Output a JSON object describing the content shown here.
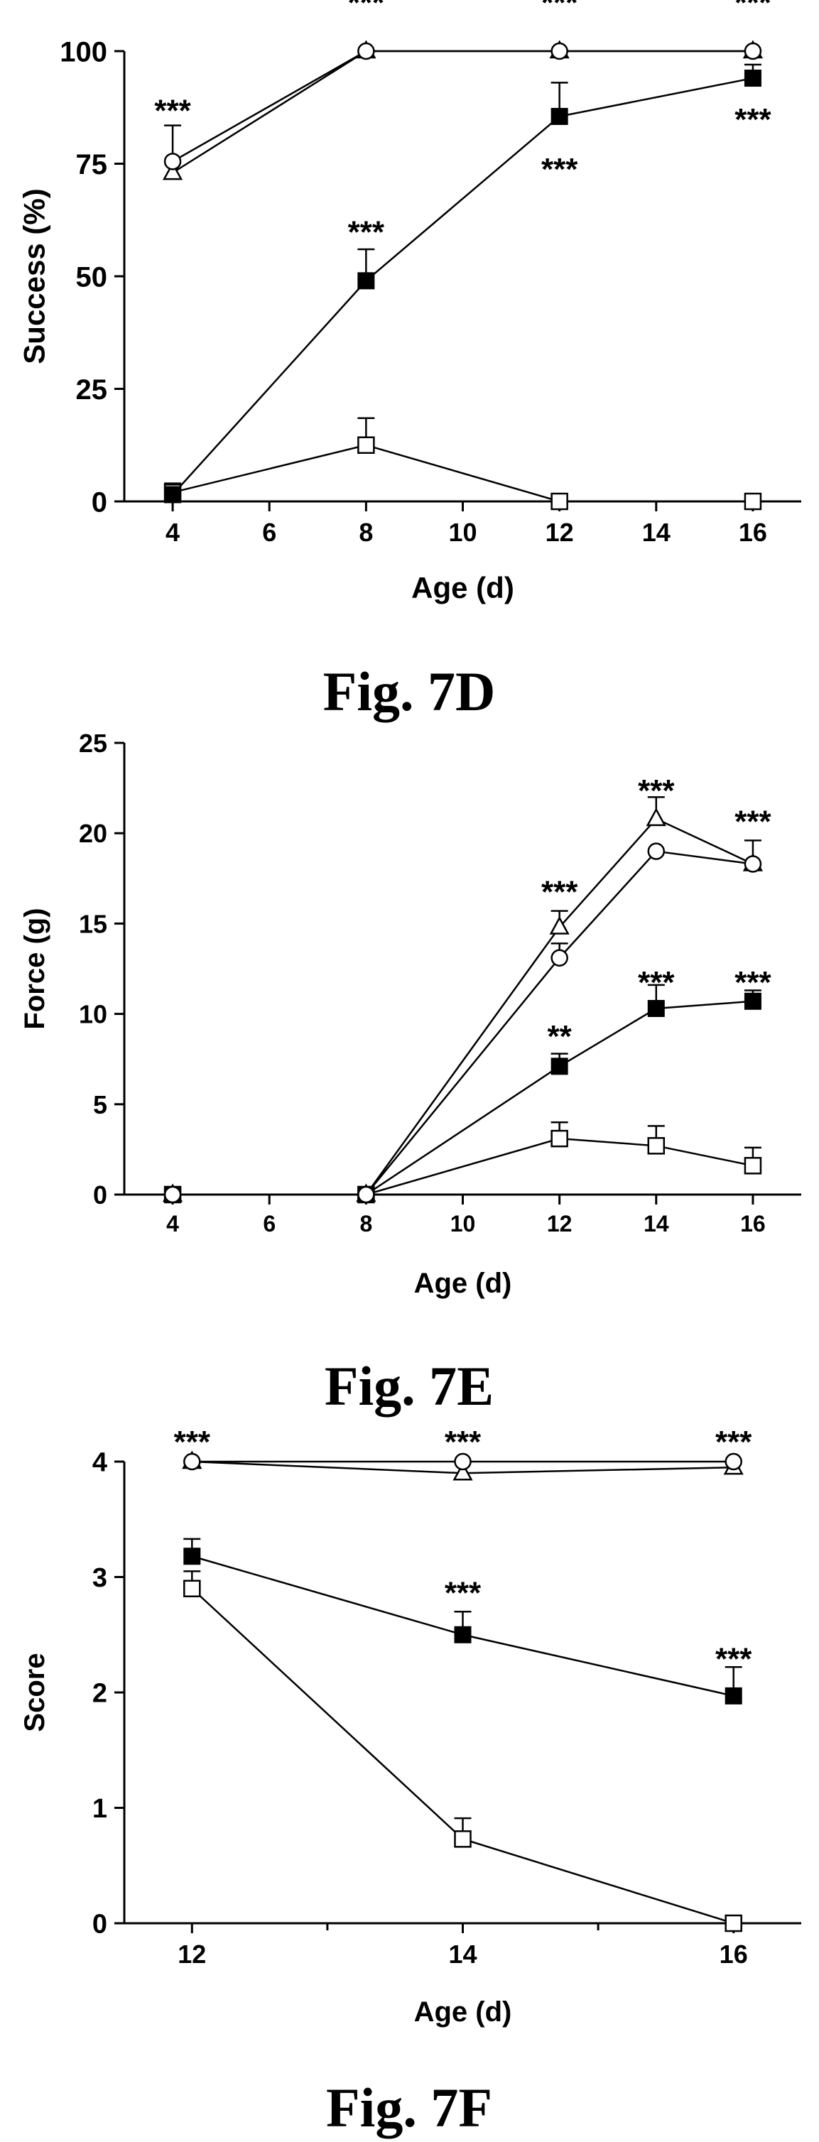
{
  "chart_data": [
    {
      "type": "line",
      "figure_label": "Fig. 7D",
      "xlabel": "Age (d)",
      "ylabel": "Success (%)",
      "xlim": [
        3,
        17
      ],
      "ylim": [
        0,
        100
      ],
      "xticks": [
        4,
        6,
        8,
        10,
        12,
        14,
        16
      ],
      "yticks": [
        0,
        25,
        50,
        75,
        100
      ],
      "x": [
        4,
        8,
        12,
        16
      ],
      "grid": false,
      "legend": "none",
      "series": [
        {
          "marker": "triangle-open",
          "values": [
            73,
            100,
            100,
            100
          ],
          "errors": [
            0,
            0,
            0,
            0
          ]
        },
        {
          "marker": "circle-open",
          "values": [
            75.5,
            100,
            100,
            100
          ],
          "errors": [
            8,
            0,
            0,
            0
          ]
        },
        {
          "marker": "square-filled",
          "values": [
            1.5,
            49,
            85.5,
            94
          ],
          "errors": [
            2,
            7,
            7.5,
            3
          ]
        },
        {
          "marker": "square-open",
          "values": [
            2,
            12.5,
            0,
            0
          ],
          "errors": [
            2,
            6,
            0,
            0
          ]
        }
      ],
      "annotations": [
        {
          "text": "***",
          "x": 4,
          "y": 87
        },
        {
          "text": "***",
          "x": 8,
          "y": 111
        },
        {
          "text": "***",
          "x": 12,
          "y": 111
        },
        {
          "text": "***",
          "x": 16,
          "y": 111
        },
        {
          "text": "***",
          "x": 8,
          "y": 60
        },
        {
          "text": "***",
          "x": 12,
          "y": 74
        },
        {
          "text": "***",
          "x": 16,
          "y": 85
        }
      ]
    },
    {
      "type": "line",
      "figure_label": "Fig. 7E",
      "xlabel": "Age (d)",
      "ylabel": "Force (g)",
      "xlim": [
        3,
        17
      ],
      "ylim": [
        0,
        25
      ],
      "xticks": [
        4,
        6,
        8,
        10,
        12,
        14,
        16
      ],
      "yticks": [
        0,
        5,
        10,
        15,
        20,
        25
      ],
      "x": [
        4,
        8,
        12,
        14,
        16
      ],
      "grid": false,
      "legend": "none",
      "series": [
        {
          "marker": "triangle-open",
          "values": [
            0,
            0,
            14.8,
            20.8,
            18.3
          ],
          "errors": [
            0,
            0,
            0.9,
            1.2,
            1.3
          ]
        },
        {
          "marker": "circle-open",
          "values": [
            0,
            0,
            13.1,
            19,
            18.3
          ],
          "errors": [
            0,
            0,
            0.8,
            0,
            0
          ]
        },
        {
          "marker": "square-filled",
          "values": [
            0,
            0,
            7.1,
            10.3,
            10.7
          ],
          "errors": [
            0,
            0,
            0.7,
            1.3,
            0.6
          ]
        },
        {
          "marker": "square-open",
          "values": [
            0,
            0,
            3.1,
            2.7,
            1.6
          ],
          "errors": [
            0,
            0,
            0.9,
            1.1,
            1
          ]
        }
      ],
      "annotations": [
        {
          "text": "***",
          "x": 12,
          "y": 16.8
        },
        {
          "text": "***",
          "x": 14,
          "y": 22.4
        },
        {
          "text": "***",
          "x": 16,
          "y": 20.7
        },
        {
          "text": "**",
          "x": 12,
          "y": 8.8
        },
        {
          "text": "***",
          "x": 14,
          "y": 11.8
        },
        {
          "text": "***",
          "x": 16,
          "y": 11.8
        }
      ]
    },
    {
      "type": "line",
      "figure_label": "Fig. 7F",
      "xlabel": "Age (d)",
      "ylabel": "Score",
      "xlim": [
        11.5,
        16.5
      ],
      "ylim": [
        0,
        4
      ],
      "xticks": [
        12,
        14,
        16
      ],
      "xminorticks": [
        13,
        15
      ],
      "yticks": [
        0,
        1,
        2,
        3,
        4
      ],
      "x": [
        12,
        14,
        16
      ],
      "grid": false,
      "legend": "none",
      "series": [
        {
          "marker": "triangle-open",
          "values": [
            4,
            3.9,
            3.95
          ],
          "errors": [
            0,
            0,
            0
          ]
        },
        {
          "marker": "circle-open",
          "values": [
            4,
            4,
            4
          ],
          "errors": [
            0,
            0,
            0
          ]
        },
        {
          "marker": "square-filled",
          "values": [
            3.18,
            2.5,
            1.97
          ],
          "errors": [
            0.15,
            0.2,
            0.25
          ]
        },
        {
          "marker": "square-open",
          "values": [
            2.9,
            0.73,
            0
          ],
          "errors": [
            0.15,
            0.18,
            0
          ]
        }
      ],
      "annotations": [
        {
          "text": "***",
          "x": 12,
          "y": 4.18
        },
        {
          "text": "***",
          "x": 14,
          "y": 4.18
        },
        {
          "text": "***",
          "x": 16,
          "y": 4.18
        },
        {
          "text": "***",
          "x": 14,
          "y": 2.87
        },
        {
          "text": "***",
          "x": 16,
          "y": 2.3
        }
      ]
    }
  ]
}
